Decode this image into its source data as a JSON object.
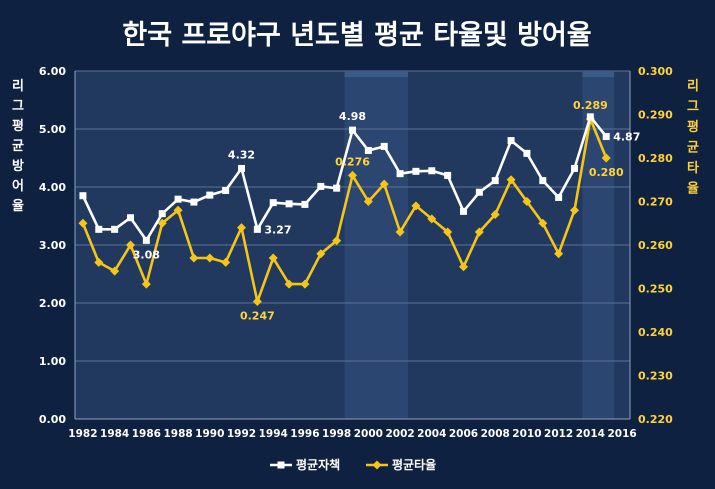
{
  "colors": {
    "background": "#0f2140",
    "plot_background": "#22395f",
    "era_band": "#2b4670",
    "era_accent": "#3c5a86",
    "gridline": "#5c7396",
    "era_line": "#ffffff",
    "defense_series": "#ffffff",
    "batting_series": "#f5c518",
    "batting_label": "#ffd23a",
    "axis_text": "#ffffff"
  },
  "chart_data": {
    "type": "line",
    "title": "한국 프로야구 년도별 평균 타율및 방어율",
    "left_axis_label": "리그평균방어율",
    "right_axis_label": "리그평균타율",
    "legend_position": "bottom",
    "grid": true,
    "x_range": [
      1981.5,
      2016.5
    ],
    "x_ticks": [
      "1982",
      "1984",
      "1986",
      "1988",
      "1990",
      "1992",
      "1994",
      "1996",
      "1998",
      "2000",
      "2002",
      "2004",
      "2006",
      "2008",
      "2010",
      "2012",
      "2014",
      "2016"
    ],
    "y_left": {
      "range": [
        0,
        6
      ],
      "ticks": [
        "0.00",
        "1.00",
        "2.00",
        "3.00",
        "4.00",
        "5.00",
        "6.00"
      ]
    },
    "y_right": {
      "range": [
        0.22,
        0.3
      ],
      "ticks": [
        "0.220",
        "0.230",
        "0.240",
        "0.250",
        "0.260",
        "0.270",
        "0.280",
        "0.290",
        "0.300"
      ]
    },
    "x": [
      1982,
      1983,
      1984,
      1985,
      1986,
      1987,
      1988,
      1989,
      1990,
      1991,
      1992,
      1993,
      1994,
      1995,
      1996,
      1997,
      1998,
      1999,
      2000,
      2001,
      2002,
      2003,
      2004,
      2005,
      2006,
      2007,
      2008,
      2009,
      2010,
      2011,
      2012,
      2013,
      2014,
      2015
    ],
    "series": [
      {
        "name": "평균자책",
        "axis": "left",
        "marker": "square",
        "values": [
          3.85,
          3.27,
          3.27,
          3.47,
          3.08,
          3.54,
          3.79,
          3.74,
          3.86,
          3.94,
          4.32,
          3.27,
          3.73,
          3.71,
          3.7,
          4.01,
          3.98,
          4.98,
          4.63,
          4.7,
          4.23,
          4.27,
          4.28,
          4.2,
          3.58,
          3.91,
          4.11,
          4.8,
          4.58,
          4.11,
          3.82,
          4.32,
          5.21,
          4.87
        ],
        "labels": [
          {
            "x": 1986,
            "text": "3.08",
            "pos": "below"
          },
          {
            "x": 1992,
            "text": "4.32",
            "pos": "above"
          },
          {
            "x": 1993,
            "text": "3.27",
            "pos": "right"
          },
          {
            "x": 1999,
            "text": "4.98",
            "pos": "above"
          },
          {
            "x": 2015,
            "text": "4.87",
            "pos": "right"
          }
        ]
      },
      {
        "name": "평균타율",
        "axis": "right",
        "marker": "diamond",
        "values": [
          0.265,
          0.256,
          0.254,
          0.26,
          0.251,
          0.265,
          0.268,
          0.257,
          0.257,
          0.256,
          0.264,
          0.247,
          0.257,
          0.251,
          0.251,
          0.258,
          0.261,
          0.276,
          0.27,
          0.274,
          0.263,
          0.269,
          0.266,
          0.263,
          0.255,
          0.263,
          0.267,
          0.275,
          0.27,
          0.265,
          0.258,
          0.268,
          0.289,
          0.28
        ],
        "labels": [
          {
            "x": 1993,
            "text": "0.247",
            "pos": "below"
          },
          {
            "x": 1999,
            "text": "0.276",
            "pos": "above"
          },
          {
            "x": 2014,
            "text": "0.289",
            "pos": "above"
          },
          {
            "x": 2015,
            "text": "0.280",
            "pos": "below"
          }
        ]
      }
    ],
    "eras": [
      [
        1998.5,
        2002.5
      ],
      [
        2013.5,
        2015.5
      ]
    ]
  }
}
